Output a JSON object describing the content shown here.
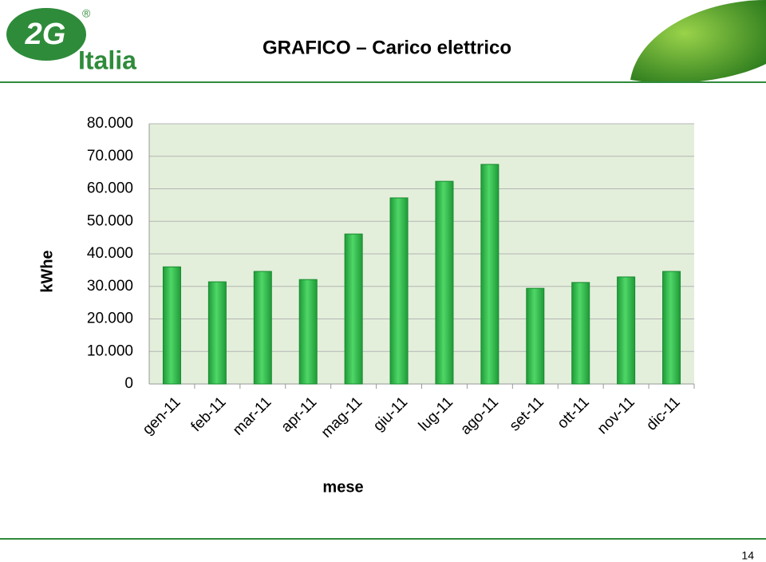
{
  "header": {
    "logo_mark": "2G",
    "registered": "®",
    "logo_text": "Italia",
    "title": "GRAFICO – Carico elettrico"
  },
  "chart_data": {
    "type": "bar",
    "categories": [
      "gen-11",
      "feb-11",
      "mar-11",
      "apr-11",
      "mag-11",
      "giu-11",
      "lug-11",
      "ago-11",
      "set-11",
      "ott-11",
      "nov-11",
      "dic-11"
    ],
    "values": [
      36000,
      31400,
      34600,
      32100,
      46100,
      57200,
      62300,
      67500,
      29400,
      31200,
      32900,
      34600
    ],
    "color": "#2db84a",
    "ylim": [
      0,
      80000
    ],
    "yticks": [
      0,
      {
        "value": 10000,
        "label": "10.000"
      },
      {
        "value": 20000,
        "label": "20.000"
      },
      {
        "value": 30000,
        "label": "30.000"
      },
      {
        "value": 40000,
        "label": "40.000"
      },
      {
        "value": 50000,
        "label": "50.000"
      },
      {
        "value": 60000,
        "label": "60.000"
      },
      {
        "value": 70000,
        "label": "70.000"
      },
      {
        "value": 80000,
        "label": "80.000"
      }
    ],
    "grid": true,
    "ylabel": "kWhe",
    "xlabel": "mese"
  },
  "footer": {
    "page_number": "14"
  }
}
